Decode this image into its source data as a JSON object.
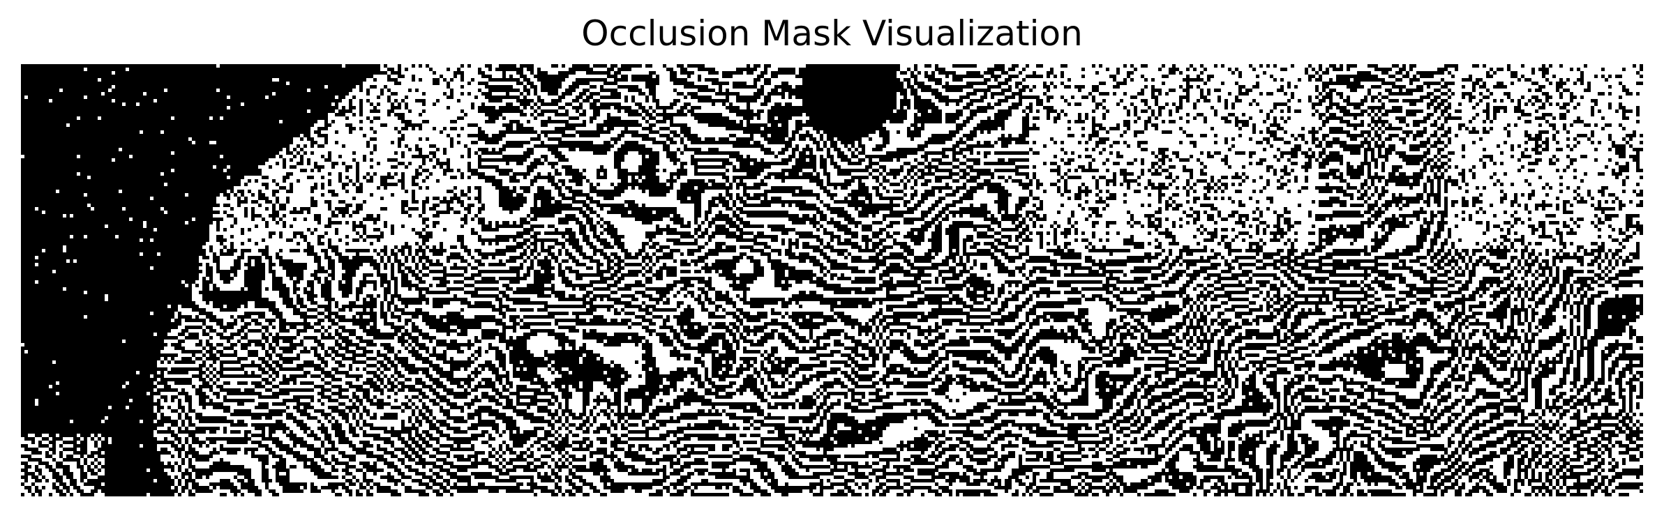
{
  "figure": {
    "title": "Occlusion Mask Visualization",
    "colormap": {
      "occluded": "#000000",
      "visible": "#ffffff"
    }
  }
}
